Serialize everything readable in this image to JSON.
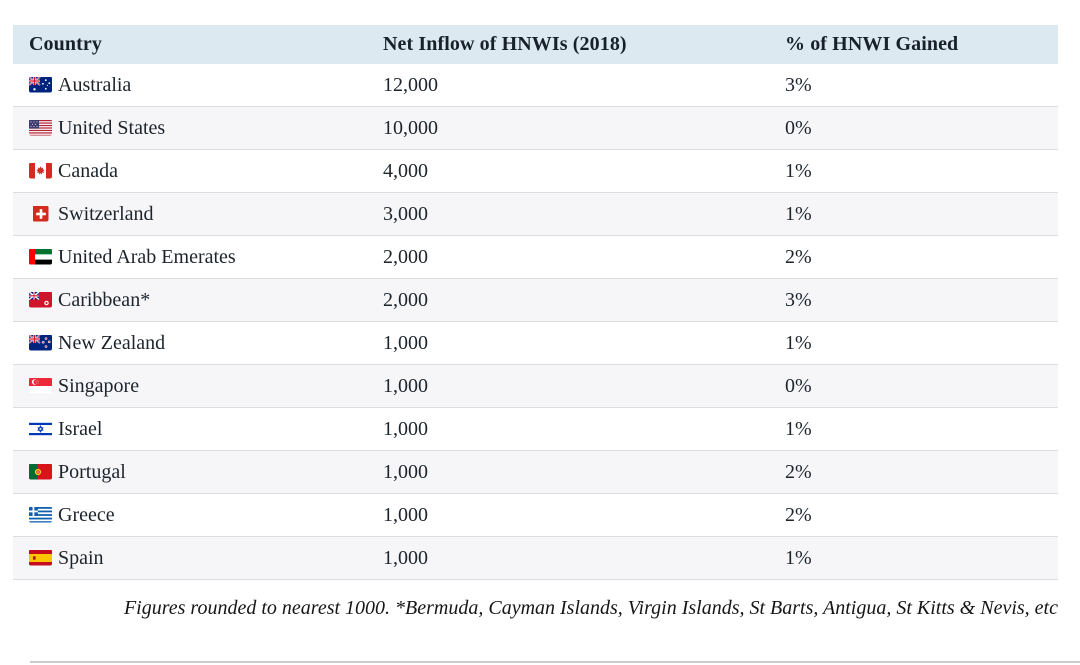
{
  "table": {
    "columns": [
      {
        "label": "Country"
      },
      {
        "label": "Net Inflow of HNWIs (2018)"
      },
      {
        "label": "% of HNWI Gained"
      }
    ],
    "rows": [
      {
        "flag": "australia",
        "country": "Australia",
        "inflow": "12,000",
        "pct": "3%"
      },
      {
        "flag": "united-states",
        "country": "United States",
        "inflow": "10,000",
        "pct": "0%"
      },
      {
        "flag": "canada",
        "country": "Canada",
        "inflow": "4,000",
        "pct": "1%"
      },
      {
        "flag": "switzerland",
        "country": "Switzerland",
        "inflow": "3,000",
        "pct": "1%"
      },
      {
        "flag": "uae",
        "country": "United Arab Emerates",
        "inflow": "2,000",
        "pct": "2%"
      },
      {
        "flag": "caribbean",
        "country": "Caribbean*",
        "inflow": "2,000",
        "pct": "3%"
      },
      {
        "flag": "new-zealand",
        "country": "New Zealand",
        "inflow": "1,000",
        "pct": "1%"
      },
      {
        "flag": "singapore",
        "country": "Singapore",
        "inflow": "1,000",
        "pct": "0%"
      },
      {
        "flag": "israel",
        "country": "Israel",
        "inflow": "1,000",
        "pct": "1%"
      },
      {
        "flag": "portugal",
        "country": "Portugal",
        "inflow": "1,000",
        "pct": "2%"
      },
      {
        "flag": "greece",
        "country": "Greece",
        "inflow": "1,000",
        "pct": "2%"
      },
      {
        "flag": "spain",
        "country": "Spain",
        "inflow": "1,000",
        "pct": "1%"
      }
    ]
  },
  "footnote": "Figures rounded to nearest 1000. *Bermuda, Cayman Islands, Virgin Islands, St Barts, Antigua, St Kitts & Nevis, etc",
  "colors": {
    "header_bg": "#dce9f1",
    "header_text": "#17212b",
    "body_text": "#1d242c",
    "row_alt_bg": "#f6f6f8",
    "row_border": "#dcdcde"
  },
  "chart_data": {
    "type": "table",
    "title": "",
    "columns": [
      "Country",
      "Net Inflow of HNWIs (2018)",
      "% of HNWI Gained"
    ],
    "rows": [
      [
        "Australia",
        12000,
        "3%"
      ],
      [
        "United States",
        10000,
        "0%"
      ],
      [
        "Canada",
        4000,
        "1%"
      ],
      [
        "Switzerland",
        3000,
        "1%"
      ],
      [
        "United Arab Emerates",
        2000,
        "2%"
      ],
      [
        "Caribbean*",
        2000,
        "3%"
      ],
      [
        "New Zealand",
        1000,
        "1%"
      ],
      [
        "Singapore",
        1000,
        "0%"
      ],
      [
        "Israel",
        1000,
        "1%"
      ],
      [
        "Portugal",
        1000,
        "2%"
      ],
      [
        "Greece",
        1000,
        "2%"
      ],
      [
        "Spain",
        1000,
        "1%"
      ]
    ],
    "footnote": "Figures rounded to nearest 1000. *Bermuda, Cayman Islands, Virgin Islands, St Barts, Antigua, St Kitts & Nevis, etc"
  }
}
